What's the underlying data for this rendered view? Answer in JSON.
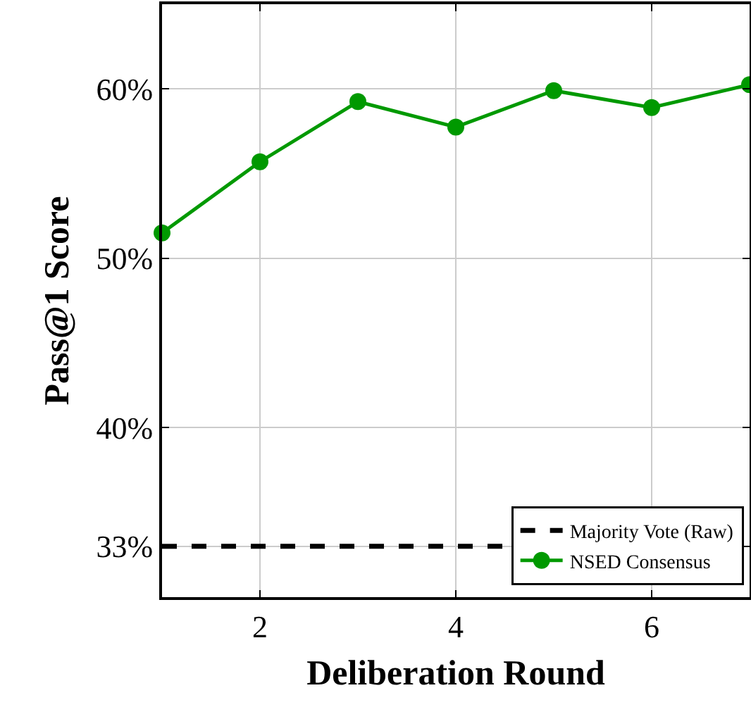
{
  "chart_data": {
    "type": "line",
    "xlabel": "Deliberation Round",
    "ylabel": "Pass@1 Score",
    "xlim": [
      1,
      7
    ],
    "xticks": [
      2,
      4,
      6
    ],
    "ylim": [
      30,
      65
    ],
    "yticks": [
      {
        "value": 33,
        "label": "33%"
      },
      {
        "value": 40,
        "label": "40%"
      },
      {
        "value": 50,
        "label": "50%"
      },
      {
        "value": 60,
        "label": "60%"
      }
    ],
    "grid": true,
    "legend": "bottom right",
    "series": [
      {
        "name": "Majority Vote (Raw)",
        "color": "#000000",
        "x": [
          1,
          7
        ],
        "values": [
          33,
          33
        ],
        "line_style": "dashed",
        "marker": "none"
      },
      {
        "name": "NSED Consensus",
        "color": "#009900",
        "x": [
          1,
          2,
          3,
          4,
          5,
          6,
          7
        ],
        "values": [
          51.5,
          55.7,
          59.25,
          57.75,
          59.9,
          58.9,
          60.25
        ],
        "line_style": "solid",
        "marker": "circle"
      }
    ]
  }
}
